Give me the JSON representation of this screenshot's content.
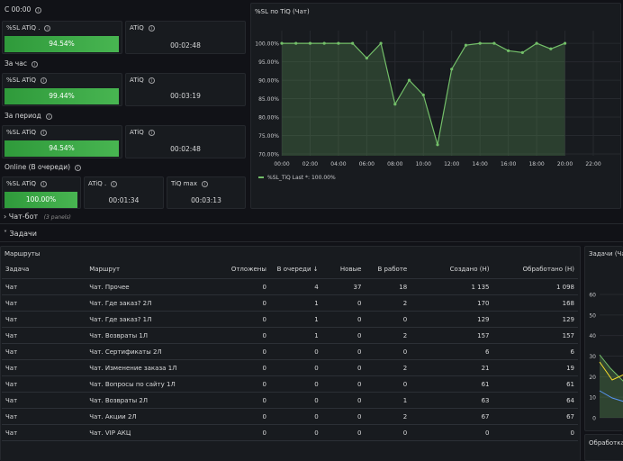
{
  "sections": {
    "s1": "С 00:00",
    "s2": "За час",
    "s3": "За период",
    "s4": "Online (В очереди)"
  },
  "stats": {
    "r1_sl_title": "%SL ATiQ .",
    "r1_sl_value": "94.54%",
    "r1_atiq_title": "ATiQ",
    "r1_atiq_value": "00:02:48",
    "r2_sl_title": "%SL ATiQ",
    "r2_sl_value": "99.44%",
    "r2_atiq_title": "ATiQ",
    "r2_atiq_value": "00:03:19",
    "r3_sl_title": "%SL ATiQ",
    "r3_sl_value": "94.54%",
    "r3_atiq_title": "ATiQ",
    "r3_atiq_value": "00:02:48",
    "r4_sl_title": "%SL ATiQ",
    "r4_sl_value": "100.00%",
    "r4_atiq_title": "ATiQ .",
    "r4_atiq_value": "00:01:34",
    "r4_tiq_title": "TiQ max",
    "r4_tiq_value": "00:03:13"
  },
  "rows": {
    "chatbot": "Чат-бот",
    "chatbot_count": "(3 panels)",
    "tasks": "Задачи"
  },
  "chart_data": [
    {
      "type": "area",
      "title": "%SL по TiQ (Чат)",
      "x": [
        "00:00",
        "01:00",
        "02:00",
        "03:00",
        "04:00",
        "05:00",
        "06:00",
        "07:00",
        "08:00",
        "09:00",
        "10:00",
        "11:00",
        "12:00",
        "13:00",
        "14:00",
        "15:00",
        "16:00",
        "17:00",
        "18:00",
        "19:00",
        "20:00"
      ],
      "x_ticks": [
        "00:00",
        "02:00",
        "04:00",
        "06:00",
        "08:00",
        "10:00",
        "12:00",
        "14:00",
        "16:00",
        "18:00",
        "20:00",
        "22:00"
      ],
      "y_ticks": [
        "100.00%",
        "95.00%",
        "90.00%",
        "85.00%",
        "80.00%",
        "75.00%",
        "70.00%"
      ],
      "ylim": [
        69.5,
        101.5
      ],
      "xlim": [
        0,
        22
      ],
      "series": [
        {
          "name": "%SL_TiQ",
          "values": [
            100,
            100,
            100,
            100,
            100,
            100,
            96,
            100,
            83.5,
            90,
            86,
            72.5,
            93,
            99.5,
            100,
            100,
            98,
            97.5,
            100,
            98.5,
            100
          ]
        }
      ],
      "legend_text": "%SL_TiQ  Last *: 100.00%",
      "color": "#73bf69"
    },
    {
      "type": "area",
      "title": "Задачи (Ча",
      "y_ticks": [
        "60",
        "50",
        "40",
        "30",
        "20",
        "10",
        "0"
      ]
    }
  ],
  "table": {
    "title": "Маршруты",
    "columns": [
      "Задача",
      "Маршрут",
      "Отложены",
      "В очереди ↓",
      "Новые",
      "В работе",
      "Создано (Н)",
      "Обработано (Н)"
    ],
    "rows": [
      [
        "Чат",
        "Чат. Прочее",
        "0",
        "4",
        "37",
        "18",
        "1 135",
        "1 098"
      ],
      [
        "Чат",
        "Чат. Где заказ? 2Л",
        "0",
        "1",
        "0",
        "2",
        "170",
        "168"
      ],
      [
        "Чат",
        "Чат. Где заказ? 1Л",
        "0",
        "1",
        "0",
        "0",
        "129",
        "129"
      ],
      [
        "Чат",
        "Чат. Возвраты 1Л",
        "0",
        "1",
        "0",
        "2",
        "157",
        "157"
      ],
      [
        "Чат",
        "Чат. Сертификаты 2Л",
        "0",
        "0",
        "0",
        "0",
        "6",
        "6"
      ],
      [
        "Чат",
        "Чат. Изменение заказа 1Л",
        "0",
        "0",
        "0",
        "2",
        "21",
        "19"
      ],
      [
        "Чат",
        "Чат. Вопросы по сайту 1Л",
        "0",
        "0",
        "0",
        "0",
        "61",
        "61"
      ],
      [
        "Чат",
        "Чат. Возвраты 2Л",
        "0",
        "0",
        "0",
        "1",
        "63",
        "64"
      ],
      [
        "Чат",
        "Чат. Акции 2Л",
        "0",
        "0",
        "0",
        "2",
        "67",
        "67"
      ],
      [
        "Чат",
        "Чат. VIP АКЦ",
        "0",
        "0",
        "0",
        "0",
        "0",
        "0"
      ]
    ]
  },
  "bottom_right_title": "Обработка"
}
